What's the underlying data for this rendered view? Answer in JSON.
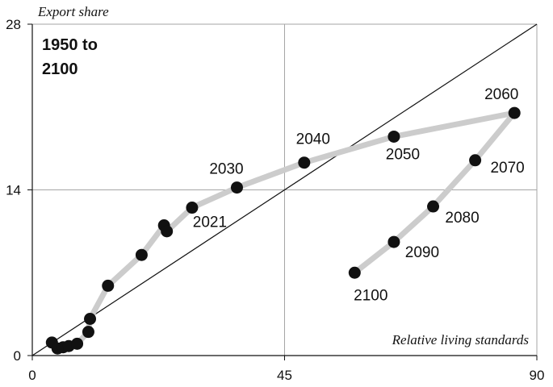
{
  "chart_data": {
    "type": "scatter",
    "title_lines": [
      "1950 to",
      "2100"
    ],
    "xlabel": "Relative living standards",
    "ylabel": "Export share",
    "xlim": [
      0,
      90
    ],
    "ylim": [
      0,
      28
    ],
    "x_ticks": [
      0,
      45,
      90
    ],
    "y_ticks": [
      0,
      14,
      28
    ],
    "grid": true,
    "reference_line": {
      "from": [
        0,
        0
      ],
      "to": [
        90,
        28
      ]
    },
    "path_color": "#cccccc",
    "point_color": "#111111",
    "points": [
      {
        "x": 3.5,
        "y": 1.1
      },
      {
        "x": 4.5,
        "y": 0.6
      },
      {
        "x": 5.5,
        "y": 0.7
      },
      {
        "x": 6.5,
        "y": 0.8
      },
      {
        "x": 8.0,
        "y": 1.0
      },
      {
        "x": 10.0,
        "y": 2.0
      },
      {
        "x": 10.3,
        "y": 3.1
      },
      {
        "x": 13.5,
        "y": 5.9
      },
      {
        "x": 19.5,
        "y": 8.5
      },
      {
        "x": 23.5,
        "y": 11.0
      },
      {
        "x": 24.0,
        "y": 10.5
      },
      {
        "x": 28.5,
        "y": 12.5,
        "label": "2021"
      },
      {
        "x": 36.5,
        "y": 14.2,
        "label": "2030"
      },
      {
        "x": 48.5,
        "y": 16.3,
        "label": "2040"
      },
      {
        "x": 64.5,
        "y": 18.5,
        "label": "2050"
      },
      {
        "x": 86.0,
        "y": 20.5,
        "label": "2060"
      },
      {
        "x": 79.0,
        "y": 16.5,
        "label": "2070"
      },
      {
        "x": 71.5,
        "y": 12.6,
        "label": "2080"
      },
      {
        "x": 64.5,
        "y": 9.6,
        "label": "2090"
      },
      {
        "x": 57.5,
        "y": 7.0,
        "label": "2100"
      }
    ]
  }
}
